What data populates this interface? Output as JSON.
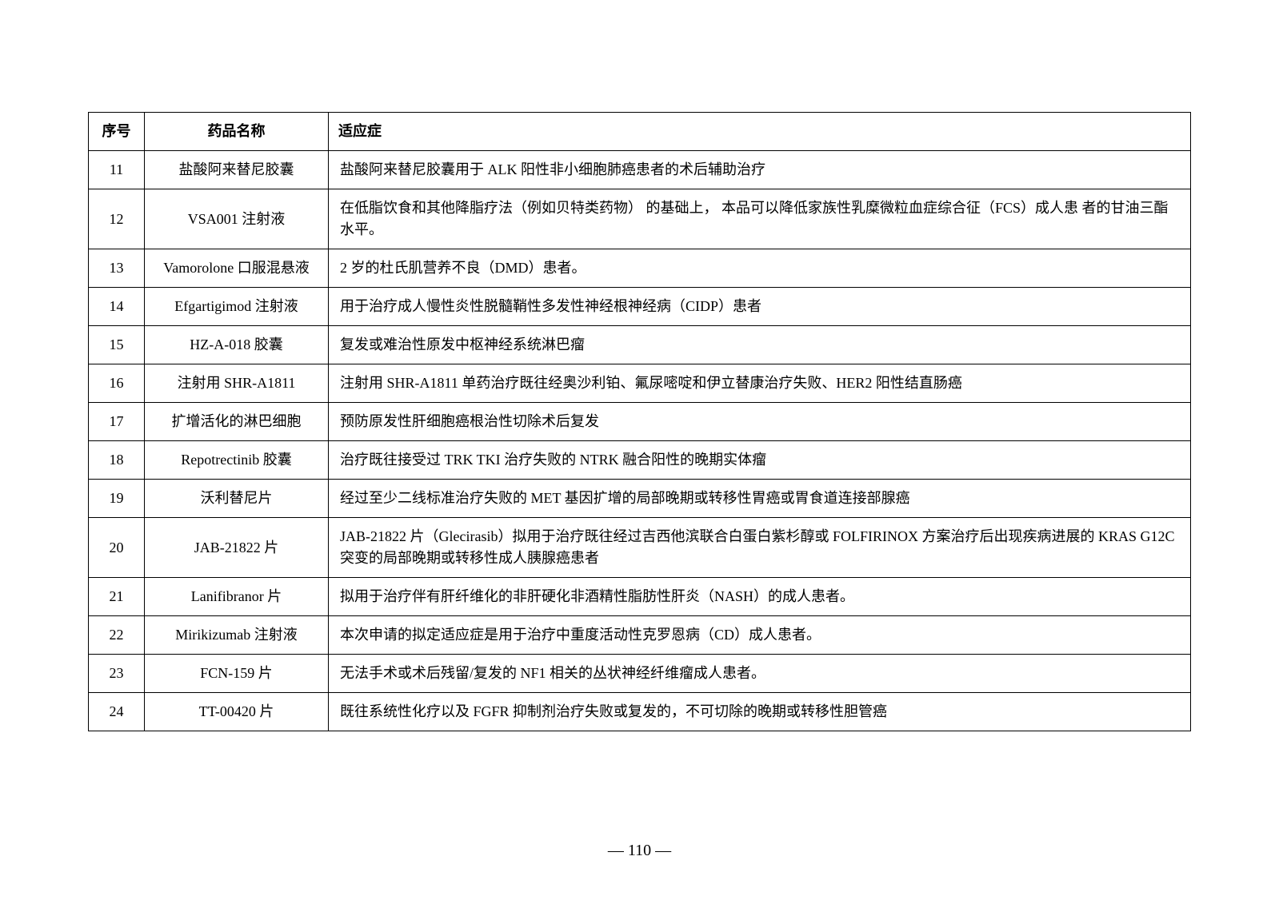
{
  "table": {
    "headers": {
      "seq": "序号",
      "name": "药品名称",
      "indication": "适应症"
    },
    "rows": [
      {
        "seq": "11",
        "name": "盐酸阿来替尼胶囊",
        "indication": "盐酸阿来替尼胶囊用于 ALK 阳性非小细胞肺癌患者的术后辅助治疗"
      },
      {
        "seq": "12",
        "name": "VSA001 注射液",
        "indication": "在低脂饮食和其他降脂疗法（例如贝特类药物） 的基础上， 本品可以降低家族性乳糜微粒血症综合征（FCS）成人患 者的甘油三酯水平。"
      },
      {
        "seq": "13",
        "name": "Vamorolone 口服混悬液",
        "indication": "2 岁的杜氏肌营养不良（DMD）患者。"
      },
      {
        "seq": "14",
        "name": "Efgartigimod 注射液",
        "indication": "用于治疗成人慢性炎性脱髓鞘性多发性神经根神经病（CIDP）患者"
      },
      {
        "seq": "15",
        "name": "HZ-A-018 胶囊",
        "indication": "复发或难治性原发中枢神经系统淋巴瘤"
      },
      {
        "seq": "16",
        "name": "注射用 SHR-A1811",
        "indication": "注射用 SHR-A1811 单药治疗既往经奥沙利铂、氟尿嘧啶和伊立替康治疗失败、HER2 阳性结直肠癌"
      },
      {
        "seq": "17",
        "name": "扩增活化的淋巴细胞",
        "indication": "预防原发性肝细胞癌根治性切除术后复发"
      },
      {
        "seq": "18",
        "name": "Repotrectinib 胶囊",
        "indication": "治疗既往接受过 TRK TKI 治疗失败的 NTRK 融合阳性的晚期实体瘤"
      },
      {
        "seq": "19",
        "name": "沃利替尼片",
        "indication": "经过至少二线标准治疗失败的 MET 基因扩增的局部晚期或转移性胃癌或胃食道连接部腺癌"
      },
      {
        "seq": "20",
        "name": "JAB-21822 片",
        "indication": "JAB-21822 片（Glecirasib）拟用于治疗既往经过吉西他滨联合白蛋白紫杉醇或 FOLFIRINOX 方案治疗后出现疾病进展的 KRAS G12C 突变的局部晚期或转移性成人胰腺癌患者"
      },
      {
        "seq": "21",
        "name": "Lanifibranor 片",
        "indication": "拟用于治疗伴有肝纤维化的非肝硬化非酒精性脂肪性肝炎（NASH）的成人患者。"
      },
      {
        "seq": "22",
        "name": "Mirikizumab 注射液",
        "indication": "本次申请的拟定适应症是用于治疗中重度活动性克罗恩病（CD）成人患者。"
      },
      {
        "seq": "23",
        "name": "FCN-159 片",
        "indication": "无法手术或术后残留/复发的 NF1 相关的丛状神经纤维瘤成人患者。"
      },
      {
        "seq": "24",
        "name": "TT-00420 片",
        "indication": "既往系统性化疗以及 FGFR 抑制剂治疗失败或复发的，不可切除的晚期或转移性胆管癌"
      }
    ]
  },
  "pageNumber": "— 110 —"
}
